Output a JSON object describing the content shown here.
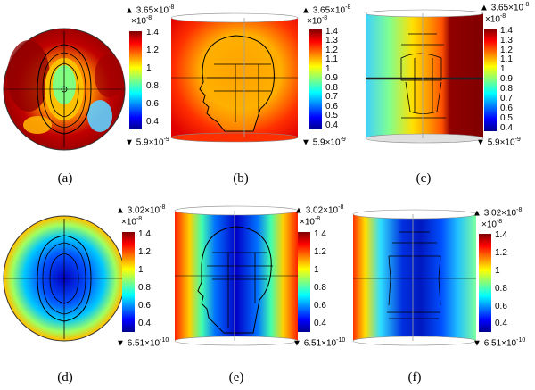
{
  "panels": [
    {
      "label": "(a)",
      "max": "3.65",
      "max_exp": "-8",
      "mult": "×10",
      "mult_exp": "-8",
      "min": "5.9",
      "min_exp": "-9",
      "ticks": [
        "1.4",
        "1.2",
        "1",
        "0.8",
        "0.6",
        "0.4"
      ]
    },
    {
      "label": "(b)",
      "max": "3.65",
      "max_exp": "-8",
      "mult": "×10",
      "mult_exp": "-8",
      "min": "5.9",
      "min_exp": "-9",
      "ticks": [
        "1.4",
        "1.3",
        "1.2",
        "1.1",
        "1",
        "0.9",
        "0.8",
        "0.7",
        "0.6",
        "0.5",
        "0.4"
      ]
    },
    {
      "label": "(c)",
      "max": "3.65",
      "max_exp": "-8",
      "mult": "×10",
      "mult_exp": "-8",
      "min": "5.9",
      "min_exp": "-9",
      "ticks": [
        "1.4",
        "1.3",
        "1.2",
        "1.1",
        "1",
        "0.9",
        "0.8",
        "0.7",
        "0.6",
        "0.5",
        "0.4"
      ]
    },
    {
      "label": "(d)",
      "max": "3.02",
      "max_exp": "-8",
      "mult": "×10",
      "mult_exp": "-8",
      "min": "6.51",
      "min_exp": "-10",
      "ticks": [
        "1.4",
        "1.2",
        "1",
        "0.8",
        "0.6",
        "0.4"
      ]
    },
    {
      "label": "(e)",
      "max": "3.02",
      "max_exp": "-8",
      "mult": "×10",
      "mult_exp": "-8",
      "min": "6.51",
      "min_exp": "-10",
      "ticks": [
        "1.4",
        "1.2",
        "1",
        "0.8",
        "0.6",
        "0.4"
      ]
    },
    {
      "label": "(f)",
      "max": "3.02",
      "max_exp": "-8",
      "mult": "×10",
      "mult_exp": "-8",
      "min": "6.51",
      "min_exp": "-10",
      "ticks": [
        "1.4",
        "1.2",
        "1",
        "0.8",
        "0.6",
        "0.4"
      ]
    }
  ],
  "colors": {
    "jet_top": "#800000",
    "jet_red": "#ff0000",
    "jet_yellow": "#ffff00",
    "jet_cyan": "#00ffff",
    "jet_blue": "#0000ff",
    "jet_bottom": "#00008f"
  }
}
